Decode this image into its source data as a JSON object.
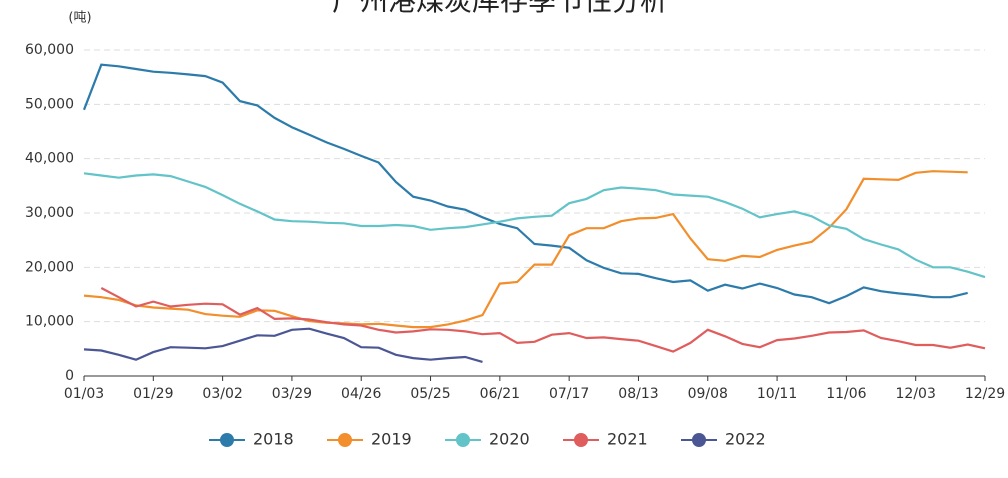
{
  "chart_data": {
    "type": "line",
    "title": "广州港煤炭库存季节性分析",
    "y_label": "(吨)",
    "categories": [
      "01/03",
      null,
      null,
      null,
      "01/29",
      null,
      null,
      null,
      "03/02",
      null,
      null,
      null,
      "03/29",
      null,
      null,
      null,
      "04/26",
      null,
      null,
      null,
      "05/25",
      null,
      null,
      null,
      "06/21",
      null,
      null,
      null,
      "07/17",
      null,
      null,
      null,
      "08/13",
      null,
      null,
      null,
      "09/08",
      null,
      null,
      null,
      "10/11",
      null,
      null,
      null,
      "11/06",
      null,
      null,
      null,
      "12/03",
      null,
      null,
      null,
      "12/29"
    ],
    "series": [
      {
        "name": "2018",
        "color": "#2c7bab",
        "values": [
          49000,
          57300,
          57000,
          56500,
          56000,
          55800,
          55500,
          55200,
          54000,
          50600,
          49800,
          47500,
          45800,
          44400,
          43000,
          41800,
          40500,
          39300,
          35700,
          33000,
          32300,
          31200,
          30600,
          29200,
          28000,
          27200,
          24300,
          24000,
          23600,
          21300,
          19900,
          18900,
          18800,
          18000,
          17300,
          17600,
          15700,
          16800,
          16100,
          17000,
          16200,
          15000,
          14500,
          13400,
          14700,
          16300,
          15600,
          15200,
          14900,
          14500,
          14500,
          15300,
          null
        ]
      },
      {
        "name": "2019",
        "color": "#f28e2b",
        "values": [
          14800,
          14500,
          14000,
          13000,
          12600,
          12400,
          12200,
          11400,
          11100,
          10900,
          12100,
          12000,
          11000,
          10100,
          9800,
          9700,
          9500,
          9600,
          9300,
          9000,
          9000,
          9500,
          10200,
          11200,
          17000,
          17300,
          20500,
          20500,
          25900,
          27200,
          27200,
          28500,
          29000,
          29100,
          29800,
          25300,
          21500,
          21200,
          22100,
          21900,
          23200,
          24000,
          24700,
          27300,
          30700,
          36300,
          36200,
          36100,
          37400,
          37700,
          37600,
          37500,
          null
        ]
      },
      {
        "name": "2020",
        "color": "#62c3c8",
        "values": [
          37300,
          36900,
          36500,
          36900,
          37100,
          36800,
          35800,
          34800,
          33300,
          31700,
          30300,
          28800,
          28500,
          28400,
          28200,
          28100,
          27600,
          27600,
          27800,
          27600,
          26900,
          27200,
          27400,
          27900,
          28400,
          29000,
          29300,
          29500,
          31800,
          32600,
          34200,
          34700,
          34500,
          34200,
          33400,
          33200,
          33000,
          32000,
          30800,
          29200,
          29800,
          30300,
          29400,
          27700,
          27100,
          25200,
          24200,
          23300,
          21400,
          20000,
          20000,
          19200,
          18200
        ]
      },
      {
        "name": "2021",
        "color": "#e05d5d",
        "values": [
          null,
          16200,
          14500,
          12800,
          13700,
          12800,
          13100,
          13300,
          13200,
          11300,
          12500,
          10500,
          10600,
          10400,
          9900,
          9500,
          9300,
          8500,
          8000,
          8200,
          8600,
          8500,
          8200,
          7700,
          7900,
          6100,
          6300,
          7600,
          7900,
          7000,
          7100,
          6800,
          6500,
          5500,
          4500,
          6100,
          8500,
          7300,
          5900,
          5300,
          6600,
          6900,
          7400,
          8000,
          8100,
          8400,
          7000,
          6400,
          5700,
          5700,
          5200,
          5800,
          5100
        ]
      },
      {
        "name": "2022",
        "color": "#4b5694",
        "values": [
          4900,
          4700,
          3900,
          3000,
          4400,
          5300,
          5200,
          5100,
          5500,
          6500,
          7500,
          7400,
          8500,
          8700,
          7800,
          7000,
          5300,
          5200,
          3900,
          3300,
          3000,
          3300,
          3500,
          2600,
          null,
          null,
          null,
          null,
          null,
          null,
          null,
          null,
          null,
          null,
          null,
          null,
          null,
          null,
          null,
          null,
          null,
          null,
          null,
          null,
          null,
          null,
          null,
          null,
          null,
          null,
          null,
          null,
          null
        ]
      }
    ],
    "ylim": [
      0,
      60000
    ],
    "yticks": [
      0,
      {
        "value": 10000,
        "label": "10,000"
      },
      {
        "value": 20000,
        "label": "20,000"
      },
      {
        "value": 30000,
        "label": "30,000"
      },
      {
        "value": 40000,
        "label": "40,000"
      },
      {
        "value": 50000,
        "label": "50,000"
      },
      {
        "value": 60000,
        "label": "60,000"
      }
    ],
    "grid": true,
    "legend": "bottom"
  }
}
